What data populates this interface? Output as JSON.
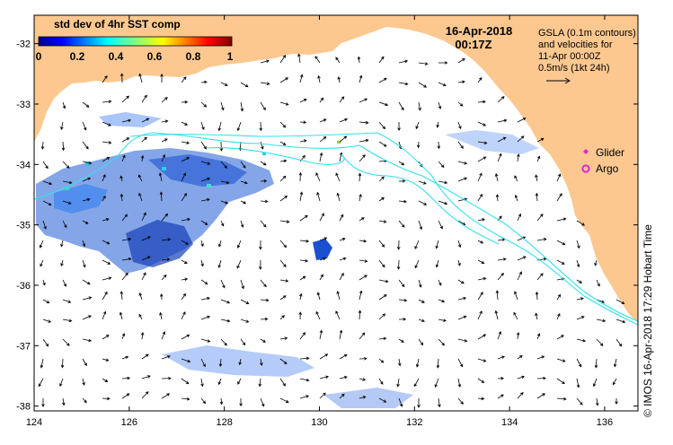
{
  "title": {
    "date": "16-Apr-2018",
    "time": "00:17Z"
  },
  "colorbar": {
    "label": "std dev of 4hr SST comp",
    "ticks": [
      "0",
      "0.2",
      "0.4",
      "0.6",
      "0.8",
      "1"
    ]
  },
  "gsla_legend": {
    "line1": "GSLA (0.1m contours)",
    "line2": "and velocities for",
    "line3": "11-Apr 00:00Z",
    "line4": "0.5m/s (1kt 24h)"
  },
  "platform_legend": {
    "glider": "Glider",
    "argo": "Argo"
  },
  "axes": {
    "x_ticks": [
      124,
      126,
      128,
      130,
      132,
      134,
      136
    ],
    "y_ticks": [
      -32,
      -33,
      -34,
      -35,
      -36,
      -37,
      -38
    ],
    "x_range": [
      124,
      136.7
    ],
    "y_range": [
      -38.08,
      -31.53
    ]
  },
  "copyright": "© IMOS 16-Apr-2018 17:29 Hobart Time",
  "colors": {
    "land": "#FCC890",
    "contour": "#33E0F0",
    "glider": "#E022E0",
    "argo": "#E022E0"
  }
}
